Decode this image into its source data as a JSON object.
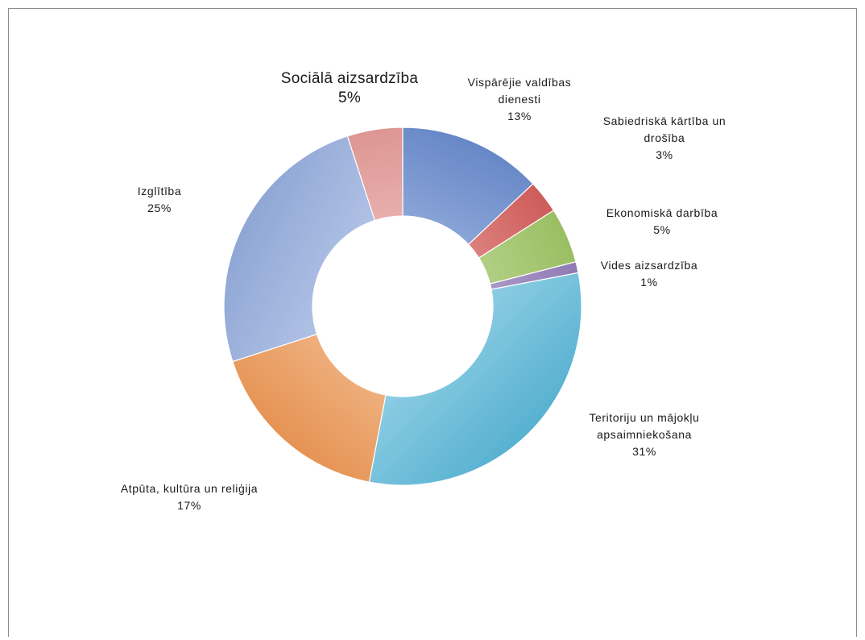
{
  "chart_data": {
    "type": "pie",
    "variant": "doughnut",
    "title": "",
    "legend": "none",
    "slices": [
      {
        "label_lines": [
          "Vispārējie valdības",
          "dienesti"
        ],
        "value": 13,
        "value_label": "13%",
        "color": "#6f93d8"
      },
      {
        "label_lines": [
          "Sabiedriskā kārtība un",
          "drošība"
        ],
        "value": 3,
        "value_label": "3%",
        "color": "#e06461"
      },
      {
        "label_lines": [
          "Ekonomiskā darbība"
        ],
        "value": 5,
        "value_label": "5%",
        "color": "#a7cf6b"
      },
      {
        "label_lines": [
          "Vides aizsardzība"
        ],
        "value": 1,
        "value_label": "1%",
        "color": "#9d85c4"
      },
      {
        "label_lines": [
          "Teritoriju un mājokļu",
          "apsaimniekošana"
        ],
        "value": 31,
        "value_label": "31%",
        "color": "#5fc0e3"
      },
      {
        "label_lines": [
          "Atpūta, kultūra un reliģija"
        ],
        "value": 17,
        "value_label": "17%",
        "color": "#f9a05a"
      },
      {
        "label_lines": [
          "Izglītība"
        ],
        "value": 25,
        "value_label": "25%",
        "color": "#9bb4e8"
      },
      {
        "label_lines": [
          "Sociālā aizsardzība"
        ],
        "value": 5,
        "value_label": "5%",
        "color": "#f0a3a0"
      }
    ]
  }
}
